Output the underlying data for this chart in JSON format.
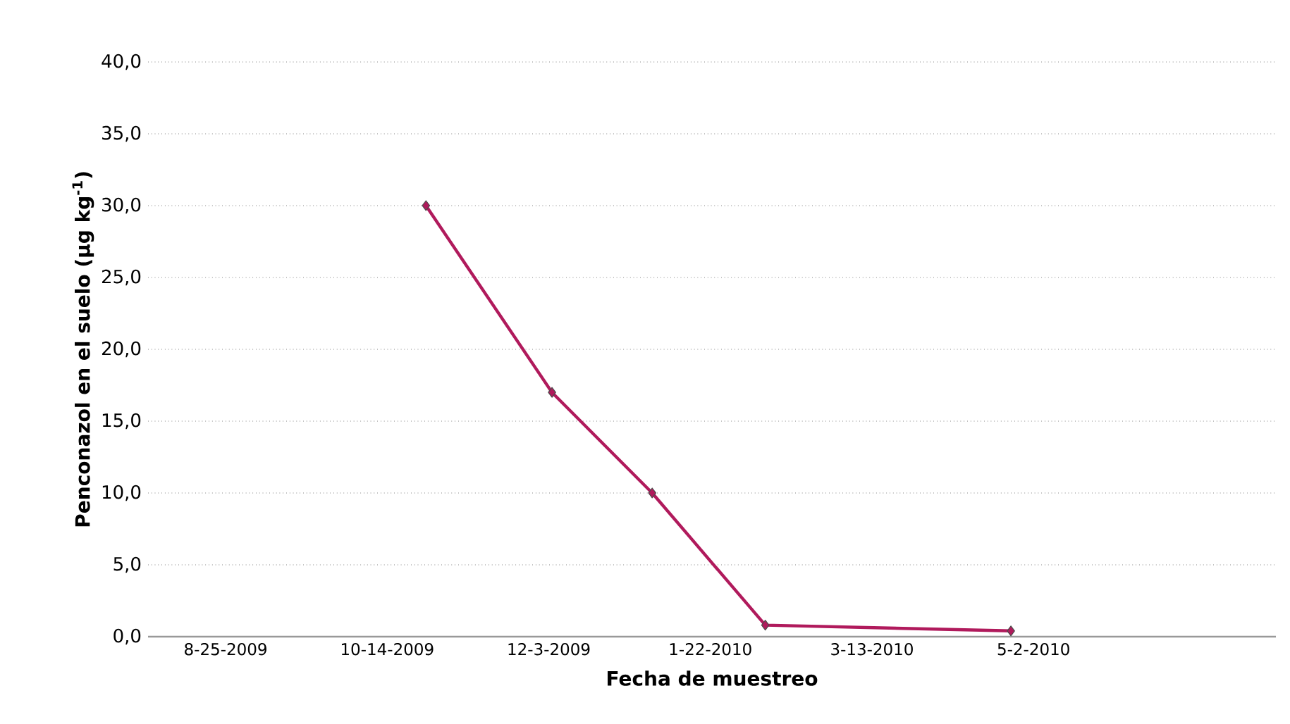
{
  "chart_data": {
    "type": "line",
    "xlabel": "Fecha de muestreo",
    "ylabel": "Penconazol en el suelo (µg kg$^{-1}$)",
    "x": [
      "2009-10-26",
      "2009-12-04",
      "2010-01-04",
      "2010-02-08",
      "2010-04-25"
    ],
    "series": [
      {
        "color": "#b01a5c",
        "values": [
          30.0,
          17.0,
          10.0,
          0.8,
          0.4
        ]
      }
    ],
    "xlim": [
      "2009-08-01",
      "2010-07-16"
    ],
    "xticks": [
      {
        "value": "2009-08-25",
        "label": "8-25-2009"
      },
      {
        "value": "2009-10-14",
        "label": "10-14-2009"
      },
      {
        "value": "2009-12-03",
        "label": "12-3-2009"
      },
      {
        "value": "2010-01-22",
        "label": "1-22-2010"
      },
      {
        "value": "2010-03-13",
        "label": "3-13-2010"
      },
      {
        "value": "2010-05-02",
        "label": "5-2-2010"
      }
    ],
    "ylim": [
      0,
      40
    ],
    "yticks": [
      {
        "value": 0,
        "label": "0,0"
      },
      {
        "value": 5,
        "label": "5,0"
      },
      {
        "value": 10,
        "label": "10,0"
      },
      {
        "value": 15,
        "label": "15,0"
      },
      {
        "value": 20,
        "label": "20,0"
      },
      {
        "value": 25,
        "label": "25,0"
      },
      {
        "value": 30,
        "label": "30,0"
      },
      {
        "value": 35,
        "label": "35,0"
      },
      {
        "value": 40,
        "label": "40,0"
      }
    ],
    "grid": "y",
    "marker": "diamond",
    "line_style": "solid"
  }
}
